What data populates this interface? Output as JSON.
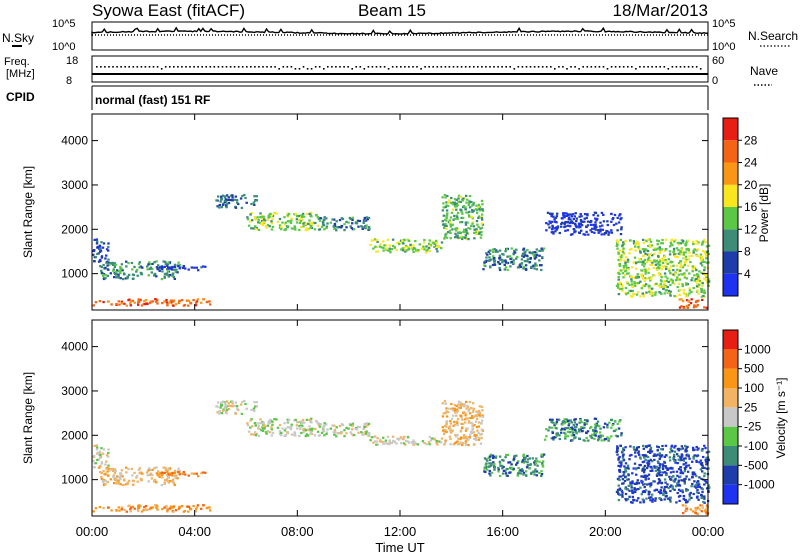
{
  "header": {
    "station": "Syowa East (fitACF)",
    "beam": "Beam 15",
    "date": "18/Mar/2013"
  },
  "strip": {
    "nsky_label": "N.Sky",
    "nsearch_label": "N.Search",
    "noise_top": "10^5",
    "noise_bottom": "10^0",
    "freq_label": "Freq.",
    "freq_unit": "[MHz]",
    "freq_ticks": [
      "18",
      "8"
    ],
    "nave_label": "Nave",
    "nave_ticks": [
      "60",
      "0"
    ],
    "cpid_label": "CPID",
    "cpid_value": "normal (fast) 151 RF"
  },
  "panels": {
    "power": {
      "ylabel": "Slant Range [km]",
      "cbar_label": "Power [dB]"
    },
    "velocity": {
      "ylabel": "Slant Range [km]",
      "cbar_label": "Velocity [m s⁻¹]"
    }
  },
  "xaxis": {
    "label": "Time UT",
    "ticks": [
      "00:00",
      "04:00",
      "08:00",
      "12:00",
      "16:00",
      "20:00",
      "00:00"
    ]
  },
  "colors": {
    "power": [
      "#1e32f0",
      "#1e3caa",
      "#3c8c78",
      "#5ac846",
      "#fae61e",
      "#fa9616",
      "#f56414",
      "#e61e14"
    ],
    "velocity": [
      "#e61e14",
      "#f56414",
      "#fa9616",
      "#f0b464",
      "#c8c8c8",
      "#5ac846",
      "#3c8c78",
      "#1e3caa",
      "#1e32f0"
    ]
  },
  "chart_data": [
    {
      "type": "heatmap",
      "title": "Syowa East (fitACF) Beam 15 18/Mar/2013",
      "xlabel": "Time UT",
      "ylabel": "Slant Range [km]",
      "xlim_hours": [
        0,
        24
      ],
      "ylim": [
        180,
        4600
      ],
      "yticks": [
        1000,
        2000,
        3000,
        4000
      ],
      "colorbar": {
        "label": "Power [dB]",
        "ticks": [
          4,
          8,
          12,
          16,
          20,
          24,
          28
        ],
        "range": [
          0,
          32
        ]
      },
      "bands": [
        {
          "t0": 0.0,
          "t1": 0.6,
          "r0": 1300,
          "r1": 1800,
          "level": 6
        },
        {
          "t0": 0.0,
          "t1": 4.6,
          "r0": 300,
          "r1": 450,
          "level": 26
        },
        {
          "t0": 0.2,
          "t1": 3.4,
          "r0": 900,
          "r1": 1300,
          "level": 10
        },
        {
          "t0": 2.6,
          "t1": 4.6,
          "r0": 1100,
          "r1": 1200,
          "level": 5
        },
        {
          "t0": 4.8,
          "t1": 6.4,
          "r0": 2500,
          "r1": 2800,
          "level": 8
        },
        {
          "t0": 6.0,
          "t1": 8.8,
          "r0": 2000,
          "r1": 2400,
          "level": 14
        },
        {
          "t0": 8.8,
          "t1": 10.8,
          "r0": 2000,
          "r1": 2300,
          "level": 9
        },
        {
          "t0": 10.8,
          "t1": 13.6,
          "r0": 1500,
          "r1": 1800,
          "level": 15
        },
        {
          "t0": 13.6,
          "t1": 15.2,
          "r0": 1800,
          "r1": 2800,
          "level": 13
        },
        {
          "t0": 15.2,
          "t1": 17.6,
          "r0": 1100,
          "r1": 1600,
          "level": 9
        },
        {
          "t0": 17.6,
          "t1": 20.6,
          "r0": 1900,
          "r1": 2400,
          "level": 4
        },
        {
          "t0": 20.4,
          "t1": 24.0,
          "r0": 500,
          "r1": 1800,
          "level": 15
        },
        {
          "t0": 22.8,
          "t1": 24.0,
          "r0": 250,
          "r1": 450,
          "level": 26
        }
      ]
    },
    {
      "type": "heatmap",
      "xlabel": "Time UT",
      "ylabel": "Slant Range [km]",
      "xlim_hours": [
        0,
        24
      ],
      "ylim": [
        180,
        4600
      ],
      "yticks": [
        1000,
        2000,
        3000,
        4000
      ],
      "colorbar": {
        "label": "Velocity [m s⁻¹]",
        "ticks": [
          1000,
          500,
          100,
          25,
          -25,
          -100,
          -500,
          -1000
        ]
      },
      "bands": [
        {
          "t0": 0.0,
          "t1": 0.6,
          "r0": 1300,
          "r1": 1800,
          "vel_index": 4
        },
        {
          "t0": 0.0,
          "t1": 4.6,
          "r0": 300,
          "r1": 450,
          "vel_index": 2
        },
        {
          "t0": 0.2,
          "t1": 3.4,
          "r0": 900,
          "r1": 1300,
          "vel_index": 3
        },
        {
          "t0": 2.6,
          "t1": 4.6,
          "r0": 1100,
          "r1": 1200,
          "vel_index": 2
        },
        {
          "t0": 4.8,
          "t1": 6.4,
          "r0": 2500,
          "r1": 2800,
          "vel_index": 4
        },
        {
          "t0": 6.0,
          "t1": 8.8,
          "r0": 2000,
          "r1": 2400,
          "vel_index": 4
        },
        {
          "t0": 8.8,
          "t1": 10.8,
          "r0": 2000,
          "r1": 2300,
          "vel_index": 4
        },
        {
          "t0": 10.8,
          "t1": 13.6,
          "r0": 1800,
          "r1": 2000,
          "vel_index": 4
        },
        {
          "t0": 13.6,
          "t1": 15.2,
          "r0": 1800,
          "r1": 2800,
          "vel_index": 3
        },
        {
          "t0": 15.2,
          "t1": 17.6,
          "r0": 1100,
          "r1": 1600,
          "vel_index": 6
        },
        {
          "t0": 17.6,
          "t1": 20.6,
          "r0": 1900,
          "r1": 2400,
          "vel_index": 6
        },
        {
          "t0": 20.4,
          "t1": 24.0,
          "r0": 500,
          "r1": 1800,
          "vel_index": 7
        },
        {
          "t0": 22.8,
          "t1": 24.0,
          "r0": 250,
          "r1": 450,
          "vel_index": 2
        }
      ]
    }
  ]
}
